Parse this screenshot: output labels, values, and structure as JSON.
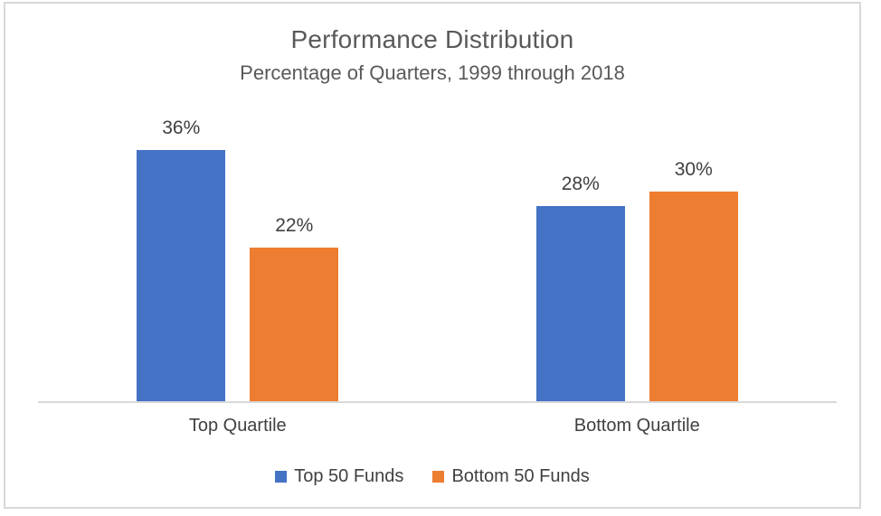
{
  "chart_data": {
    "type": "bar",
    "title": "Performance Distribution",
    "subtitle": "Percentage of Quarters, 1999 through 2018",
    "categories": [
      "Top Quartile",
      "Bottom Quartile"
    ],
    "series": [
      {
        "name": "Top 50 Funds",
        "values": [
          36,
          28
        ],
        "labels": [
          "36%",
          "28%"
        ],
        "color": "#4472C4"
      },
      {
        "name": "Bottom 50 Funds",
        "values": [
          22,
          30
        ],
        "labels": [
          "22%",
          "30%"
        ],
        "color": "#ED7D31"
      }
    ],
    "value_format": "percent",
    "ylim": [
      0,
      40
    ],
    "grid": false,
    "y_axis_visible": false,
    "legend_position": "bottom",
    "axis_line_color": "#D9D9D9",
    "frame_border_color": "#D8D8D8",
    "title_color": "#595959",
    "label_color": "#404040"
  }
}
